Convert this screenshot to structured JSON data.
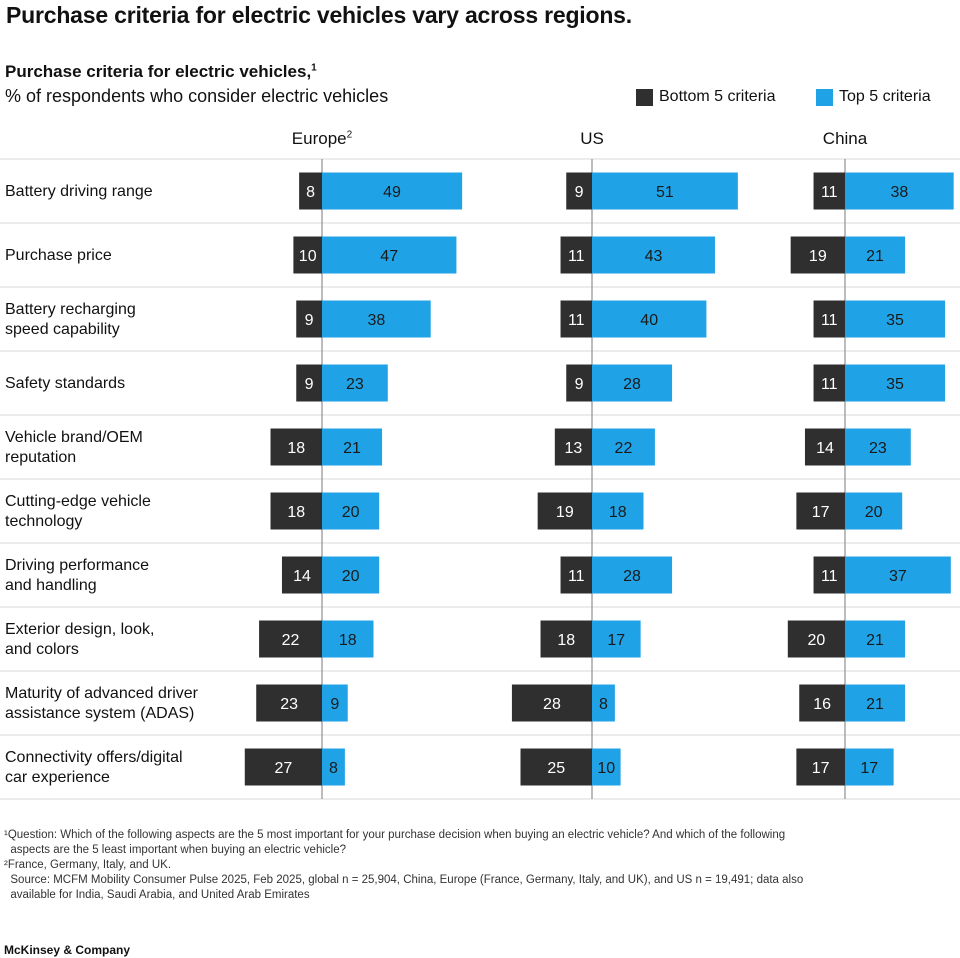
{
  "headline": "Purchase criteria for electric vehicles vary across regions.",
  "chart_data": {
    "type": "bar",
    "title": "Purchase criteria for electric vehicles,",
    "title_sup": "1",
    "subtitle": "% of respondents who consider electric vehicles",
    "legend_position": "top-right",
    "categories": [
      "Battery driving range",
      "Purchase price",
      "Battery recharging speed capability",
      "Safety standards",
      "Vehicle brand/OEM reputation",
      "Cutting-edge vehicle technology",
      "Driving performance and handling",
      "Exterior design, look, and colors",
      "Maturity of advanced driver assistance system (ADAS)",
      "Connectivity offers/digital car experience"
    ],
    "category_lines": [
      [
        "Battery driving range"
      ],
      [
        "Purchase price"
      ],
      [
        "Battery recharging",
        "speed capability"
      ],
      [
        "Safety standards"
      ],
      [
        "Vehicle brand/OEM",
        "reputation"
      ],
      [
        "Cutting-edge vehicle",
        "technology"
      ],
      [
        "Driving performance",
        "and handling"
      ],
      [
        "Exterior design, look,",
        "and colors"
      ],
      [
        "Maturity of advanced driver",
        "assistance system (ADAS)"
      ],
      [
        "Connectivity offers/digital",
        "car experience"
      ]
    ],
    "series_names": [
      "Bottom 5 criteria",
      "Top 5 criteria"
    ],
    "colors": {
      "bottom": "#2f2f2f",
      "top": "#1fa3e6"
    },
    "panels": [
      {
        "region": "Europe",
        "region_sup": "2",
        "bottom": [
          8,
          10,
          9,
          9,
          18,
          18,
          14,
          22,
          23,
          27
        ],
        "top": [
          49,
          47,
          38,
          23,
          21,
          20,
          20,
          18,
          9,
          8
        ]
      },
      {
        "region": "US",
        "region_sup": "",
        "bottom": [
          9,
          11,
          11,
          9,
          13,
          19,
          11,
          18,
          28,
          25
        ],
        "top": [
          51,
          43,
          40,
          28,
          22,
          18,
          28,
          17,
          8,
          10
        ]
      },
      {
        "region": "China",
        "region_sup": "",
        "bottom": [
          11,
          19,
          11,
          11,
          14,
          17,
          11,
          20,
          16,
          17
        ],
        "top": [
          38,
          21,
          35,
          35,
          23,
          20,
          37,
          21,
          21,
          17
        ]
      }
    ]
  },
  "footnotes": [
    "¹Question: Which of the following aspects are the 5 most important for your purchase decision when buying an electric vehicle? And which of the following\n  aspects are the 5 least important when buying an electric vehicle?",
    "²France, Germany, Italy, and UK.",
    "  Source: MCFM Mobility Consumer Pulse 2025, Feb 2025, global n = 25,904, China, Europe (France, Germany, Italy, and UK), and US n = 19,491; data also\n  available for India, Saudi Arabia, and United Arab Emirates"
  ],
  "brand": "McKinsey & Company"
}
